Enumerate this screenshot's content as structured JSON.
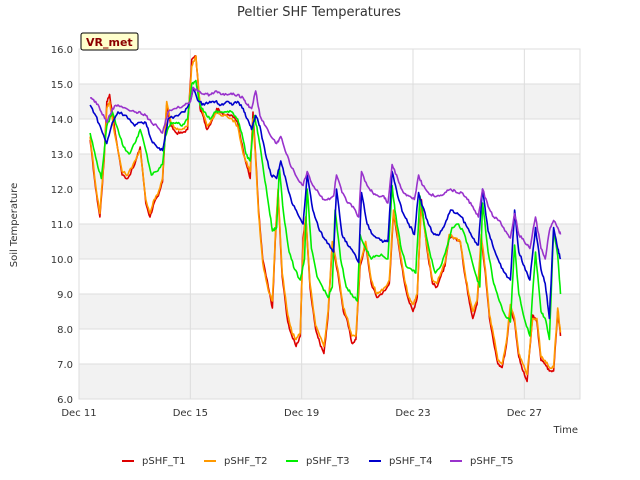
{
  "chart_data": {
    "type": "line",
    "title": "Peltier SHF Temperatures",
    "xlabel": "Time",
    "ylabel": "Soil Temperature",
    "badge": "VR_met",
    "x_tick_labels": [
      "Dec 11",
      "Dec 15",
      "Dec 19",
      "Dec 23",
      "Dec 27"
    ],
    "x_ticks": [
      11,
      15,
      19,
      23,
      27
    ],
    "xlim": [
      11,
      29
    ],
    "ylim": [
      6.0,
      16.0
    ],
    "y_ticks": [
      6.0,
      7.0,
      8.0,
      9.0,
      10.0,
      11.0,
      12.0,
      13.0,
      14.0,
      15.0,
      16.0
    ],
    "y_tick_labels": [
      "6.0",
      "7.0",
      "8.0",
      "9.0",
      "10.0",
      "11.0",
      "12.0",
      "13.0",
      "14.0",
      "15.0",
      "16.0"
    ],
    "grid": true,
    "legend_position": "bottom",
    "series": [
      {
        "name": "pSHF_T1",
        "color": "#dd0000",
        "x": [
          11.4,
          11.6,
          11.75,
          11.9,
          12.0,
          12.1,
          12.3,
          12.55,
          12.75,
          13.0,
          13.2,
          13.4,
          13.55,
          13.7,
          13.85,
          14.0,
          14.15,
          14.3,
          14.5,
          14.7,
          14.9,
          15.05,
          15.2,
          15.35,
          15.45,
          15.6,
          15.8,
          15.95,
          16.1,
          16.3,
          16.5,
          16.7,
          16.9,
          17.05,
          17.15,
          17.25,
          17.35,
          17.45,
          17.6,
          17.8,
          17.95,
          18.05,
          18.15,
          18.3,
          18.5,
          18.65,
          18.8,
          18.95,
          19.05,
          19.15,
          19.3,
          19.5,
          19.65,
          19.8,
          19.95,
          20.1,
          20.3,
          20.5,
          20.65,
          20.8,
          20.95,
          21.1,
          21.3,
          21.5,
          21.7,
          21.85,
          22.0,
          22.15,
          22.3,
          22.5,
          22.7,
          22.85,
          23.0,
          23.15,
          23.3,
          23.5,
          23.7,
          23.85,
          24.0,
          24.15,
          24.3,
          24.5,
          24.7,
          24.85,
          25.0,
          25.15,
          25.3,
          25.45,
          25.6,
          25.75,
          25.9,
          26.05,
          26.2,
          26.35,
          26.5,
          26.65,
          26.8,
          26.95,
          27.1,
          27.3,
          27.45,
          27.6,
          27.75,
          27.9,
          28.05,
          28.2
        ],
        "y": [
          13.4,
          12.0,
          11.2,
          12.8,
          14.5,
          14.7,
          13.6,
          12.4,
          12.3,
          12.7,
          13.2,
          11.6,
          11.2,
          11.6,
          11.8,
          12.2,
          14.4,
          13.8,
          13.6,
          13.6,
          13.7,
          15.7,
          15.8,
          14.3,
          14.1,
          13.7,
          14.0,
          14.3,
          14.2,
          14.1,
          14.1,
          13.9,
          13.1,
          12.6,
          12.3,
          14.2,
          12.9,
          11.4,
          10.0,
          9.2,
          8.6,
          10.5,
          11.9,
          9.5,
          8.2,
          7.8,
          7.5,
          7.8,
          10.6,
          11.2,
          9.2,
          8.0,
          7.6,
          7.3,
          8.4,
          10.4,
          9.6,
          8.5,
          8.2,
          7.6,
          7.7,
          9.8,
          10.4,
          9.3,
          8.9,
          9.0,
          9.1,
          9.3,
          11.3,
          10.3,
          9.3,
          8.8,
          8.5,
          8.9,
          11.7,
          10.3,
          9.3,
          9.2,
          9.5,
          9.8,
          10.6,
          10.6,
          10.5,
          9.6,
          8.9,
          8.3,
          8.7,
          10.6,
          9.6,
          8.3,
          7.6,
          7.0,
          6.9,
          7.5,
          8.6,
          8.2,
          7.2,
          6.8,
          6.5,
          8.4,
          8.2,
          7.1,
          7.0,
          6.8,
          6.8,
          8.5
        ],
        "y_end": 7.8
      },
      {
        "name": "pSHF_T2",
        "color": "#ff9900",
        "x": [
          11.4,
          11.6,
          11.75,
          11.9,
          12.0,
          12.1,
          12.3,
          12.55,
          12.75,
          13.0,
          13.2,
          13.4,
          13.55,
          13.7,
          13.85,
          14.0,
          14.15,
          14.3,
          14.5,
          14.7,
          14.9,
          15.05,
          15.2,
          15.35,
          15.45,
          15.6,
          15.8,
          15.95,
          16.1,
          16.3,
          16.5,
          16.7,
          16.9,
          17.05,
          17.15,
          17.25,
          17.35,
          17.45,
          17.6,
          17.8,
          17.95,
          18.05,
          18.15,
          18.3,
          18.5,
          18.65,
          18.8,
          18.95,
          19.05,
          19.15,
          19.3,
          19.5,
          19.65,
          19.8,
          19.95,
          20.1,
          20.3,
          20.5,
          20.65,
          20.8,
          20.95,
          21.1,
          21.3,
          21.5,
          21.7,
          21.85,
          22.0,
          22.15,
          22.3,
          22.5,
          22.7,
          22.85,
          23.0,
          23.15,
          23.3,
          23.5,
          23.7,
          23.85,
          24.0,
          24.15,
          24.3,
          24.5,
          24.7,
          24.85,
          25.0,
          25.15,
          25.3,
          25.45,
          25.6,
          25.75,
          25.9,
          26.05,
          26.2,
          26.35,
          26.5,
          26.65,
          26.8,
          26.95,
          27.1,
          27.3,
          27.45,
          27.6,
          27.75,
          27.9,
          28.05,
          28.2
        ],
        "y": [
          13.5,
          12.1,
          11.3,
          12.9,
          14.3,
          14.5,
          13.5,
          12.5,
          12.4,
          12.8,
          13.1,
          11.7,
          11.3,
          11.7,
          11.9,
          12.3,
          14.5,
          13.9,
          13.7,
          13.7,
          13.8,
          15.5,
          15.8,
          14.4,
          14.2,
          13.8,
          14.0,
          14.2,
          14.1,
          14.1,
          14.0,
          13.8,
          13.0,
          12.7,
          12.5,
          14.0,
          12.8,
          11.3,
          9.9,
          9.1,
          8.8,
          10.6,
          12.0,
          9.6,
          8.4,
          7.9,
          7.7,
          7.9,
          10.4,
          11.2,
          9.3,
          8.1,
          7.8,
          7.5,
          8.5,
          10.5,
          9.7,
          8.6,
          8.3,
          7.8,
          7.8,
          9.9,
          10.5,
          9.4,
          9.0,
          9.1,
          9.2,
          9.4,
          11.4,
          10.4,
          9.4,
          8.9,
          8.7,
          9.0,
          11.5,
          10.4,
          9.4,
          9.3,
          9.6,
          9.9,
          10.7,
          10.6,
          10.5,
          9.7,
          9.0,
          8.5,
          8.8,
          10.7,
          9.7,
          8.4,
          7.8,
          7.1,
          7.0,
          7.6,
          8.7,
          8.3,
          7.3,
          7.0,
          6.7,
          8.3,
          8.3,
          7.2,
          7.1,
          6.9,
          6.9,
          8.6
        ],
        "y_end": 7.9
      },
      {
        "name": "pSHF_T3",
        "color": "#00ee00",
        "x": [
          11.4,
          11.6,
          11.8,
          12.0,
          12.2,
          12.4,
          12.6,
          12.8,
          13.0,
          13.2,
          13.4,
          13.6,
          13.8,
          14.0,
          14.1,
          14.3,
          14.5,
          14.7,
          14.9,
          15.05,
          15.2,
          15.35,
          15.5,
          15.7,
          15.9,
          16.1,
          16.3,
          16.5,
          16.7,
          16.85,
          17.0,
          17.15,
          17.3,
          17.45,
          17.6,
          17.8,
          17.95,
          18.1,
          18.2,
          18.35,
          18.55,
          18.75,
          18.95,
          19.1,
          19.2,
          19.35,
          19.55,
          19.75,
          19.95,
          20.1,
          20.2,
          20.4,
          20.6,
          20.8,
          21.0,
          21.1,
          21.3,
          21.5,
          21.7,
          21.9,
          22.1,
          22.25,
          22.35,
          22.55,
          22.75,
          22.95,
          23.1,
          23.25,
          23.4,
          23.6,
          23.8,
          24.0,
          24.2,
          24.4,
          24.6,
          24.8,
          25.0,
          25.2,
          25.4,
          25.5,
          25.7,
          25.9,
          26.1,
          26.3,
          26.5,
          26.65,
          26.8,
          27.0,
          27.2,
          27.4,
          27.6,
          27.75,
          27.9,
          28.05,
          28.2
        ],
        "y": [
          13.6,
          12.9,
          12.3,
          13.8,
          14.2,
          13.7,
          13.2,
          13.0,
          13.3,
          13.7,
          13.1,
          12.4,
          12.5,
          12.7,
          13.5,
          13.9,
          13.9,
          13.8,
          14.0,
          15.0,
          15.1,
          14.4,
          14.2,
          14.0,
          14.2,
          14.2,
          14.2,
          14.2,
          14.0,
          13.6,
          13.0,
          12.8,
          14.1,
          13.5,
          12.7,
          11.6,
          10.8,
          10.9,
          12.6,
          11.3,
          10.2,
          9.7,
          9.4,
          10.0,
          12.0,
          10.3,
          9.5,
          9.2,
          8.9,
          9.2,
          11.4,
          10.0,
          9.2,
          9.0,
          8.8,
          10.7,
          10.3,
          10.0,
          10.1,
          10.1,
          10.0,
          12.1,
          11.4,
          10.4,
          9.8,
          9.7,
          9.6,
          11.8,
          11.0,
          10.2,
          9.6,
          9.8,
          10.3,
          10.9,
          11.0,
          10.8,
          10.3,
          9.7,
          9.2,
          11.6,
          10.2,
          9.3,
          8.8,
          8.4,
          8.2,
          10.4,
          9.0,
          8.3,
          7.8,
          10.2,
          8.5,
          8.3,
          7.7,
          10.8,
          10.1
        ],
        "y_end": 9.0
      },
      {
        "name": "pSHF_T4",
        "color": "#0000cc",
        "x": [
          11.4,
          11.6,
          11.8,
          12.0,
          12.2,
          12.4,
          12.7,
          13.0,
          13.2,
          13.4,
          13.6,
          13.8,
          14.0,
          14.2,
          14.5,
          14.8,
          15.0,
          15.1,
          15.3,
          15.5,
          15.7,
          15.9,
          16.1,
          16.3,
          16.5,
          16.7,
          16.9,
          17.05,
          17.2,
          17.35,
          17.5,
          17.7,
          17.9,
          18.1,
          18.25,
          18.45,
          18.65,
          18.85,
          19.05,
          19.2,
          19.4,
          19.6,
          19.8,
          20.0,
          20.15,
          20.25,
          20.45,
          20.65,
          20.85,
          21.05,
          21.15,
          21.35,
          21.55,
          21.75,
          21.95,
          22.1,
          22.25,
          22.45,
          22.65,
          22.85,
          23.05,
          23.2,
          23.35,
          23.55,
          23.75,
          23.95,
          24.15,
          24.35,
          24.55,
          24.75,
          24.95,
          25.15,
          25.35,
          25.5,
          25.7,
          25.9,
          26.1,
          26.3,
          26.5,
          26.65,
          26.8,
          27.0,
          27.2,
          27.4,
          27.6,
          27.75,
          27.9,
          28.05,
          28.2
        ],
        "y": [
          14.4,
          14.1,
          13.7,
          13.3,
          13.9,
          14.2,
          14.1,
          13.8,
          13.9,
          13.9,
          13.4,
          13.2,
          13.1,
          14.0,
          14.1,
          14.2,
          14.5,
          14.9,
          14.5,
          14.4,
          14.5,
          14.5,
          14.4,
          14.5,
          14.4,
          14.5,
          14.3,
          14.0,
          13.7,
          14.1,
          13.8,
          13.0,
          12.4,
          12.3,
          12.8,
          12.2,
          11.6,
          11.3,
          11.0,
          12.4,
          11.4,
          10.9,
          10.6,
          10.4,
          10.2,
          12.0,
          10.7,
          10.4,
          10.2,
          9.9,
          11.9,
          11.0,
          10.7,
          10.6,
          10.5,
          10.5,
          12.5,
          11.8,
          11.3,
          11.0,
          10.7,
          11.9,
          11.5,
          11.0,
          10.7,
          10.7,
          11.0,
          11.4,
          11.3,
          11.2,
          10.9,
          10.6,
          10.4,
          12.0,
          10.8,
          10.3,
          9.9,
          9.6,
          9.4,
          11.4,
          10.2,
          9.8,
          9.4,
          10.9,
          9.7,
          9.3,
          8.3,
          10.9,
          10.3
        ],
        "y_end": 10.0
      },
      {
        "name": "pSHF_T5",
        "color": "#9933cc",
        "x": [
          11.4,
          11.6,
          11.8,
          12.0,
          12.2,
          12.4,
          12.7,
          13.0,
          13.2,
          13.4,
          13.6,
          13.8,
          14.0,
          14.2,
          14.5,
          14.8,
          15.0,
          15.1,
          15.3,
          15.5,
          15.7,
          15.9,
          16.1,
          16.3,
          16.5,
          16.7,
          16.9,
          17.05,
          17.2,
          17.35,
          17.5,
          17.7,
          17.9,
          18.1,
          18.25,
          18.45,
          18.65,
          18.85,
          19.05,
          19.2,
          19.4,
          19.6,
          19.8,
          20.0,
          20.15,
          20.25,
          20.45,
          20.65,
          20.85,
          21.05,
          21.15,
          21.35,
          21.55,
          21.75,
          21.95,
          22.1,
          22.25,
          22.45,
          22.65,
          22.85,
          23.05,
          23.2,
          23.35,
          23.55,
          23.75,
          23.95,
          24.15,
          24.35,
          24.55,
          24.75,
          24.95,
          25.15,
          25.35,
          25.5,
          25.7,
          25.9,
          26.1,
          26.3,
          26.5,
          26.65,
          26.8,
          27.0,
          27.2,
          27.4,
          27.6,
          27.75,
          27.9,
          28.05,
          28.2
        ],
        "y": [
          14.6,
          14.5,
          14.2,
          13.9,
          14.3,
          14.4,
          14.3,
          14.2,
          14.2,
          14.1,
          13.9,
          13.8,
          13.6,
          14.2,
          14.3,
          14.4,
          14.5,
          14.9,
          14.8,
          14.7,
          14.7,
          14.8,
          14.7,
          14.7,
          14.7,
          14.7,
          14.6,
          14.4,
          14.3,
          14.8,
          14.1,
          13.8,
          13.5,
          13.3,
          13.5,
          13.0,
          12.6,
          12.3,
          12.1,
          12.5,
          12.1,
          11.9,
          11.7,
          11.7,
          11.8,
          12.4,
          11.9,
          11.6,
          11.5,
          11.2,
          12.5,
          12.1,
          11.9,
          11.8,
          11.8,
          11.6,
          12.7,
          12.3,
          11.9,
          11.8,
          11.7,
          12.4,
          12.1,
          11.9,
          11.8,
          11.8,
          11.9,
          12.0,
          11.9,
          11.9,
          11.7,
          11.5,
          11.2,
          12.0,
          11.5,
          11.2,
          11.1,
          10.8,
          10.6,
          11.3,
          10.7,
          10.5,
          10.3,
          11.2,
          10.3,
          10.0,
          10.8,
          11.1,
          10.9
        ],
        "y_end": 10.7
      }
    ]
  }
}
